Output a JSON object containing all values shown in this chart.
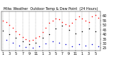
{
  "title": "Milw. Weather  Outdoor Temp & Dew Point  (24 Hours)",
  "background_color": "#ffffff",
  "grid_color": "#888888",
  "x_labels": [
    "1",
    "3",
    "5",
    "7",
    "9",
    "11",
    "1",
    "3",
    "5",
    "7",
    "9",
    "11",
    "1",
    "3",
    "5"
  ],
  "ylim": [
    22,
    65
  ],
  "yticks": [
    25,
    30,
    35,
    40,
    45,
    50,
    55,
    60
  ],
  "ylabel_fontsize": 3.5,
  "xlabel_fontsize": 3.5,
  "title_fontsize": 3.5,
  "temp_color": "#ff0000",
  "dewpoint_color": "#0000cc",
  "outdoor_color": "#000000",
  "vline_x": [
    0,
    2,
    4,
    6,
    8,
    10,
    12,
    14,
    16,
    18,
    20,
    22,
    24,
    26,
    28
  ],
  "temp_x": [
    0,
    1,
    2,
    3,
    4,
    5,
    6,
    7,
    8,
    9,
    10,
    11,
    12,
    13,
    14,
    15,
    16,
    17,
    18,
    19,
    20,
    21,
    22,
    23,
    24,
    25,
    26,
    27,
    28,
    29
  ],
  "temp_y": [
    55,
    53,
    50,
    47,
    43,
    40,
    37,
    35,
    33,
    34,
    36,
    38,
    42,
    47,
    52,
    55,
    57,
    56,
    53,
    51,
    49,
    52,
    56,
    59,
    57,
    55,
    53,
    59,
    61,
    58
  ],
  "dew_x": [
    1,
    3,
    5,
    7,
    9,
    11,
    13,
    15,
    17,
    19,
    21,
    23,
    25,
    27,
    29
  ],
  "dew_y": [
    34,
    31,
    28,
    26,
    25,
    27,
    30,
    32,
    31,
    29,
    27,
    29,
    28,
    29,
    27
  ],
  "out_x": [
    0,
    2,
    4,
    6,
    8,
    10,
    12,
    14,
    16,
    18,
    20,
    22,
    24,
    26,
    28
  ],
  "out_y": [
    44,
    40,
    36,
    32,
    29,
    31,
    36,
    40,
    46,
    49,
    45,
    41,
    43,
    46,
    43
  ]
}
